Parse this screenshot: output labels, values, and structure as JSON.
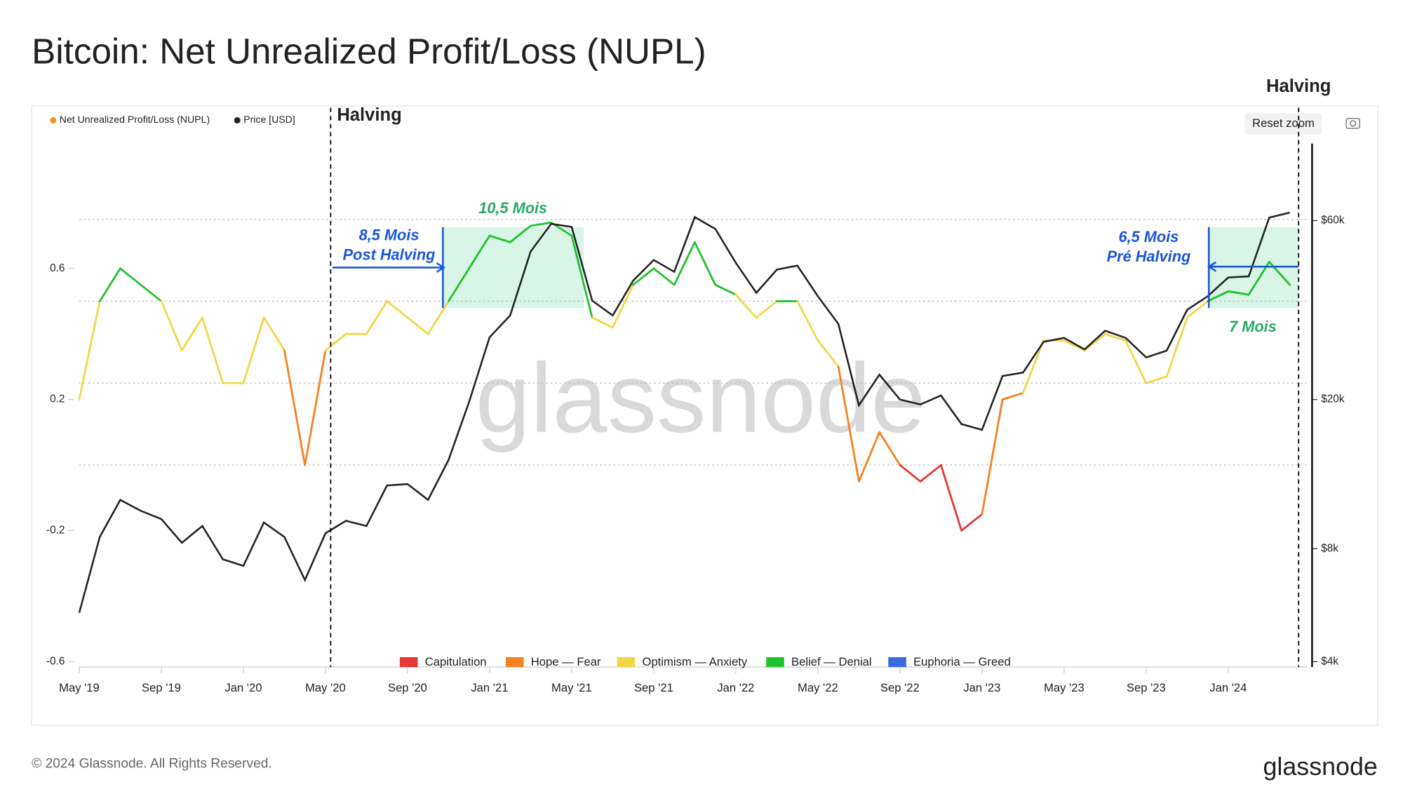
{
  "chart_data": {
    "type": "line",
    "title": "Bitcoin: Net Unrealized Profit/Loss (NUPL)",
    "x": [
      "2019-05",
      "2019-06",
      "2019-07",
      "2019-08",
      "2019-09",
      "2019-10",
      "2019-11",
      "2019-12",
      "2020-01",
      "2020-02",
      "2020-03",
      "2020-04",
      "2020-05",
      "2020-06",
      "2020-07",
      "2020-08",
      "2020-09",
      "2020-10",
      "2020-11",
      "2020-12",
      "2021-01",
      "2021-02",
      "2021-03",
      "2021-04",
      "2021-05",
      "2021-06",
      "2021-07",
      "2021-08",
      "2021-09",
      "2021-10",
      "2021-11",
      "2021-12",
      "2022-01",
      "2022-02",
      "2022-03",
      "2022-04",
      "2022-05",
      "2022-06",
      "2022-07",
      "2022-08",
      "2022-09",
      "2022-10",
      "2022-11",
      "2022-12",
      "2023-01",
      "2023-02",
      "2023-03",
      "2023-04",
      "2023-05",
      "2023-06",
      "2023-07",
      "2023-08",
      "2023-09",
      "2023-10",
      "2023-11",
      "2023-12",
      "2024-01",
      "2024-02",
      "2024-03",
      "2024-04"
    ],
    "series": [
      {
        "name": "Net Unrealized Profit/Loss (NUPL)",
        "color": "#f7931a",
        "values": [
          0.2,
          0.5,
          0.6,
          0.55,
          0.5,
          0.35,
          0.45,
          0.25,
          0.25,
          0.45,
          0.35,
          0.0,
          0.35,
          0.4,
          0.4,
          0.5,
          0.45,
          0.4,
          0.5,
          0.6,
          0.7,
          0.68,
          0.73,
          0.74,
          0.7,
          0.45,
          0.42,
          0.55,
          0.6,
          0.55,
          0.68,
          0.55,
          0.52,
          0.45,
          0.5,
          0.5,
          0.38,
          0.3,
          -0.05,
          0.1,
          0.0,
          -0.05,
          0.0,
          -0.2,
          -0.15,
          0.2,
          0.22,
          0.38,
          0.38,
          0.35,
          0.4,
          0.38,
          0.25,
          0.27,
          0.45,
          0.5,
          0.53,
          0.52,
          0.62,
          0.55
        ]
      },
      {
        "name": "Price [USD]",
        "color": "#222222",
        "axis": "y2",
        "values": [
          5400,
          8600,
          10800,
          10100,
          9600,
          8300,
          9200,
          7500,
          7200,
          9400,
          8600,
          6600,
          8800,
          9500,
          9200,
          11800,
          11900,
          10800,
          13800,
          19700,
          29300,
          33500,
          49600,
          58800,
          57700,
          36700,
          33500,
          41500,
          47100,
          43800,
          61300,
          57000,
          46300,
          38500,
          44400,
          45500,
          37700,
          31800,
          19300,
          23300,
          20000,
          19400,
          20500,
          17200,
          16600,
          23100,
          23600,
          28500,
          29200,
          27200,
          30500,
          29200,
          25900,
          27000,
          34700,
          37700,
          42300,
          42600,
          61100,
          63000
        ]
      }
    ],
    "xticks": [
      {
        "value": "2019-05",
        "label": "May '19"
      },
      {
        "value": "2019-09",
        "label": "Sep '19"
      },
      {
        "value": "2020-01",
        "label": "Jan '20"
      },
      {
        "value": "2020-05",
        "label": "May '20"
      },
      {
        "value": "2020-09",
        "label": "Sep '20"
      },
      {
        "value": "2021-01",
        "label": "Jan '21"
      },
      {
        "value": "2021-05",
        "label": "May '21"
      },
      {
        "value": "2021-09",
        "label": "Sep '21"
      },
      {
        "value": "2022-01",
        "label": "Jan '22"
      },
      {
        "value": "2022-05",
        "label": "May '22"
      },
      {
        "value": "2022-09",
        "label": "Sep '22"
      },
      {
        "value": "2023-01",
        "label": "Jan '23"
      },
      {
        "value": "2023-05",
        "label": "May '23"
      },
      {
        "value": "2023-09",
        "label": "Sep '23"
      },
      {
        "value": "2024-01",
        "label": "Jan '24"
      }
    ],
    "ylim": [
      -0.6,
      1.0
    ],
    "yticks": [
      0.6,
      0.2,
      -0.2,
      -0.6
    ],
    "y2lim": [
      4000,
      100000
    ],
    "y2log": true,
    "y2ticks": [
      {
        "value": 60000,
        "label": "$60k"
      },
      {
        "value": 20000,
        "label": "$20k"
      },
      {
        "value": 8000,
        "label": "$8k"
      },
      {
        "value": 4000,
        "label": "$4k"
      }
    ],
    "zones": [
      {
        "name": "Capitulation",
        "color": "#e53935",
        "max": 0
      },
      {
        "name": "Hope — Fear",
        "color": "#f5821f",
        "max": 0.25
      },
      {
        "name": "Optimism — Anxiety",
        "color": "#f2d648",
        "max": 0.5
      },
      {
        "name": "Belief — Denial",
        "color": "#22c22e",
        "max": 0.75
      },
      {
        "name": "Euphoria — Greed",
        "color": "#3b6be0",
        "max": 1
      }
    ],
    "annotations": {
      "halving_left": "Halving",
      "halving_right": "Halving",
      "post": [
        "8,5 Mois",
        "Post Halving"
      ],
      "duration1": "10,5 Mois",
      "pre": [
        "6,5 Mois",
        "Pré Halving"
      ],
      "duration2": "7 Mois"
    },
    "watermark": "glassnode",
    "reset_zoom": "Reset zoom"
  },
  "footer": {
    "copyright": "© 2024 Glassnode. All Rights Reserved.",
    "logo": "glassnode"
  }
}
